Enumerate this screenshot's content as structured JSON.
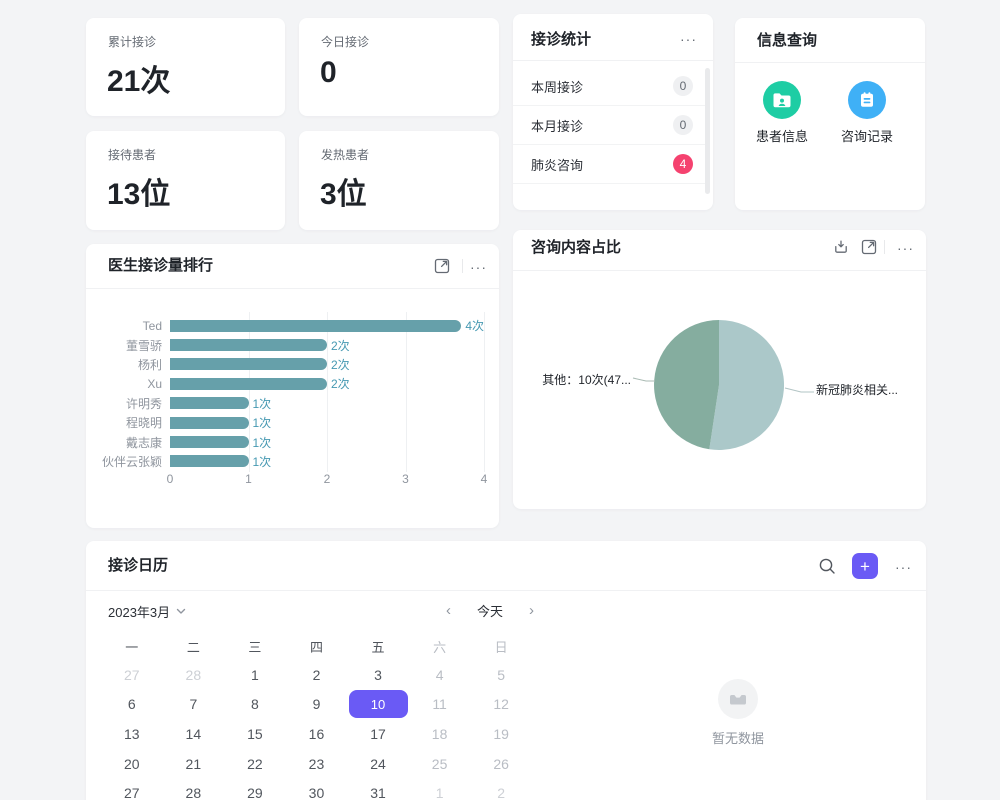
{
  "page": {
    "background": "#f3f4f6"
  },
  "stat_cards": [
    {
      "label": "累计接诊",
      "value": "21次"
    },
    {
      "label": "今日接诊",
      "value": "0"
    },
    {
      "label": "接待患者",
      "value": "13位"
    },
    {
      "label": "发热患者",
      "value": "3位"
    }
  ],
  "reception_stats": {
    "title": "接诊统计",
    "items": [
      {
        "label": "本周接诊",
        "count": "0",
        "variant": "gray"
      },
      {
        "label": "本月接诊",
        "count": "0",
        "variant": "gray"
      },
      {
        "label": "肺炎咨询",
        "count": "4",
        "variant": "pink"
      }
    ],
    "badge_gray_color": "#eff0f2",
    "badge_pink_color": "#f5426f"
  },
  "info_query": {
    "title": "信息查询",
    "shortcuts": [
      {
        "label": "患者信息",
        "icon": "folder-user-icon",
        "color": "#1ecda4"
      },
      {
        "label": "咨询记录",
        "icon": "clipboard-icon",
        "color": "#3fb0f6"
      }
    ]
  },
  "chart_data": [
    {
      "type": "bar",
      "orientation": "horizontal",
      "title": "医生接诊量排行",
      "categories": [
        "Ted",
        "董雪骄",
        "杨利",
        "Xu",
        "许明秀",
        "程晓明",
        "戴志康",
        "伙伴云张颖"
      ],
      "values": [
        4,
        2,
        2,
        2,
        1,
        1,
        1,
        1
      ],
      "value_labels": [
        "4次",
        "2次",
        "2次",
        "2次",
        "1次",
        "1次",
        "1次",
        "1次"
      ],
      "unit": "次",
      "xlim": [
        0,
        4
      ],
      "x_ticks": [
        "0",
        "1",
        "2",
        "3",
        "4"
      ],
      "grid": true,
      "bar_color": "#66a0aa",
      "value_label_color": "#4699b2"
    },
    {
      "type": "pie",
      "title": "咨询内容占比",
      "slices": [
        {
          "label": "新冠肺炎相关...",
          "value": 11,
          "percent": 52.4,
          "color": "#abc8c9"
        },
        {
          "label": "其他：10次(47...",
          "value": 10,
          "percent": 47.6,
          "color": "#85ad9f"
        }
      ],
      "legend_position": "side-labels"
    }
  ],
  "calendar": {
    "title": "接诊日历",
    "month_label": "2023年3月",
    "today_label": "今天",
    "accent": "#6a5af5",
    "weekdays": [
      "一",
      "二",
      "三",
      "四",
      "五",
      "六",
      "日"
    ],
    "selected_day": "10",
    "weeks": [
      [
        {
          "d": "27",
          "type": "other"
        },
        {
          "d": "28",
          "type": "other"
        },
        {
          "d": "1"
        },
        {
          "d": "2"
        },
        {
          "d": "3"
        },
        {
          "d": "4",
          "type": "weekend"
        },
        {
          "d": "5",
          "type": "weekend"
        }
      ],
      [
        {
          "d": "6"
        },
        {
          "d": "7"
        },
        {
          "d": "8"
        },
        {
          "d": "9"
        },
        {
          "d": "10",
          "type": "selected"
        },
        {
          "d": "11",
          "type": "weekend"
        },
        {
          "d": "12",
          "type": "weekend"
        }
      ],
      [
        {
          "d": "13"
        },
        {
          "d": "14"
        },
        {
          "d": "15"
        },
        {
          "d": "16"
        },
        {
          "d": "17"
        },
        {
          "d": "18",
          "type": "weekend"
        },
        {
          "d": "19",
          "type": "weekend"
        }
      ],
      [
        {
          "d": "20"
        },
        {
          "d": "21"
        },
        {
          "d": "22"
        },
        {
          "d": "23"
        },
        {
          "d": "24"
        },
        {
          "d": "25",
          "type": "weekend"
        },
        {
          "d": "26",
          "type": "weekend"
        }
      ],
      [
        {
          "d": "27"
        },
        {
          "d": "28"
        },
        {
          "d": "29"
        },
        {
          "d": "30"
        },
        {
          "d": "31"
        },
        {
          "d": "1",
          "type": "other"
        },
        {
          "d": "2",
          "type": "other"
        }
      ]
    ],
    "empty_text": "暂无数据"
  },
  "icons": {
    "ellipsis": "···",
    "nav_prev": "‹",
    "nav_next": "›",
    "plus": "+"
  }
}
